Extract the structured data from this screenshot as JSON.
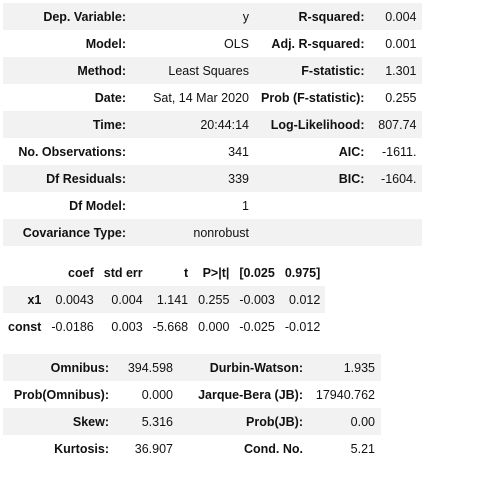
{
  "summary": [
    [
      "Dep. Variable:",
      "y",
      "R-squared:",
      "0.004"
    ],
    [
      "Model:",
      "OLS",
      "Adj. R-squared:",
      "0.001"
    ],
    [
      "Method:",
      "Least Squares",
      "F-statistic:",
      "1.301"
    ],
    [
      "Date:",
      "Sat, 14 Mar 2020",
      "Prob (F-statistic):",
      "0.255"
    ],
    [
      "Time:",
      "20:44:14",
      "Log-Likelihood:",
      "807.74"
    ],
    [
      "No. Observations:",
      "341",
      "AIC:",
      "-1611."
    ],
    [
      "Df Residuals:",
      "339",
      "BIC:",
      "-1604."
    ],
    [
      "Df Model:",
      "1",
      "",
      ""
    ],
    [
      "Covariance Type:",
      "nonrobust",
      "",
      ""
    ]
  ],
  "coef_table": {
    "headers": [
      "",
      "coef",
      "std err",
      "t",
      "P>|t|",
      "[0.025",
      "0.975]"
    ],
    "rows": [
      [
        "x1",
        "0.0043",
        "0.004",
        "1.141",
        "0.255",
        "-0.003",
        "0.012"
      ],
      [
        "const",
        "-0.0186",
        "0.003",
        "-5.668",
        "0.000",
        "-0.025",
        "-0.012"
      ]
    ]
  },
  "diagnostics": [
    [
      "Omnibus:",
      "394.598",
      "Durbin-Watson:",
      "1.935"
    ],
    [
      "Prob(Omnibus):",
      "0.000",
      "Jarque-Bera (JB):",
      "17940.762"
    ],
    [
      "Skew:",
      "5.316",
      "Prob(JB):",
      "0.00"
    ],
    [
      "Kurtosis:",
      "36.907",
      "Cond. No.",
      "5.21"
    ]
  ]
}
